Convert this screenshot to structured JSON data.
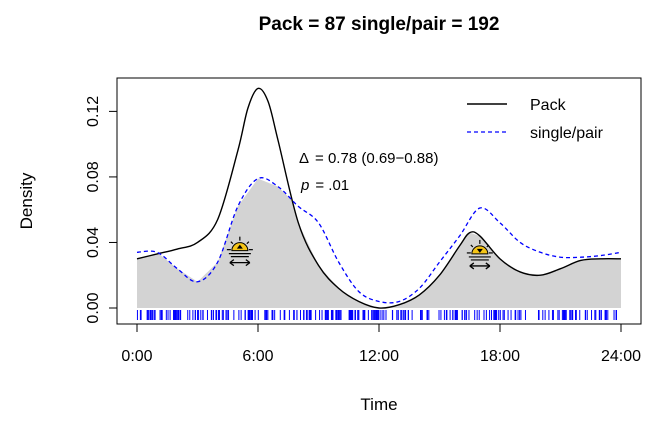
{
  "chart_data": {
    "type": "area",
    "title": "Pack  =  87 single/pair  =  192",
    "xlabel": "Time",
    "ylabel": "Density",
    "xlim": [
      0,
      24
    ],
    "ylim": [
      0,
      0.13
    ],
    "x_ticks": [
      0,
      6,
      12,
      18,
      24
    ],
    "x_tick_labels": [
      "0:00",
      "6:00",
      "12:00",
      "18:00",
      "24:00"
    ],
    "y_ticks": [
      0,
      0.04,
      0.08,
      0.12
    ],
    "y_tick_labels": [
      "0.00",
      "0.04",
      "0.08",
      "0.12"
    ],
    "grid": false,
    "legend_position": "top-right",
    "series": [
      {
        "name": "Pack",
        "style": "solid",
        "color": "#000000",
        "x": [
          0,
          1,
          2,
          3,
          4,
          5,
          5.5,
          6,
          6.5,
          7,
          8,
          9,
          10,
          11,
          12,
          13,
          14,
          15,
          16,
          16.5,
          17,
          18,
          19,
          20,
          21,
          22,
          23,
          24
        ],
        "y": [
          0.03,
          0.033,
          0.036,
          0.04,
          0.054,
          0.096,
          0.122,
          0.134,
          0.126,
          0.102,
          0.052,
          0.026,
          0.012,
          0.004,
          0.0,
          0.002,
          0.008,
          0.02,
          0.038,
          0.046,
          0.044,
          0.03,
          0.022,
          0.02,
          0.024,
          0.029,
          0.03,
          0.03
        ]
      },
      {
        "name": "single/pair",
        "style": "dashed",
        "color": "#0000ff",
        "x": [
          0,
          1,
          2,
          3,
          4,
          5,
          6,
          7,
          8,
          9,
          10,
          11,
          12,
          13,
          14,
          15,
          16,
          17,
          18,
          19,
          20,
          21,
          22,
          23,
          24
        ],
        "y": [
          0.034,
          0.034,
          0.024,
          0.016,
          0.028,
          0.062,
          0.079,
          0.074,
          0.062,
          0.052,
          0.028,
          0.01,
          0.004,
          0.004,
          0.012,
          0.028,
          0.044,
          0.061,
          0.052,
          0.04,
          0.034,
          0.031,
          0.031,
          0.032,
          0.034
        ]
      }
    ],
    "shaded_overlap": {
      "fill": "#d3d3d3"
    },
    "rug_color": "#0000ff",
    "annotations": {
      "delta_symbol": "Δ",
      "delta_value": "= 0.78 (0.69−0.88)",
      "p_symbol": "p",
      "p_value": "= .01"
    },
    "icons": [
      {
        "name": "sunrise-icon",
        "x": 5.1,
        "y": 0.035
      },
      {
        "name": "sunset-icon",
        "x": 17.0,
        "y": 0.033
      }
    ]
  }
}
